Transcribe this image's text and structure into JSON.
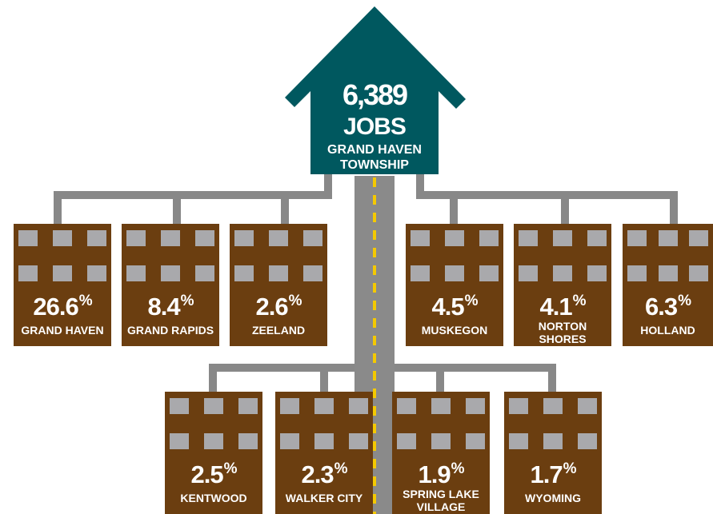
{
  "house": {
    "jobs_count": "6,389",
    "jobs_label": "JOBS",
    "place_line1": "GRAND HAVEN",
    "place_line2": "TOWNSHIP"
  },
  "colors": {
    "house": "#00585f",
    "building": "#6b3e10",
    "window": "#a9a9ac",
    "connector": "#888888",
    "road": "#8a8a8a",
    "road_line": "#f4c900"
  },
  "destinations": [
    {
      "value": "26.6",
      "unit": "%",
      "label": [
        "GRAND HAVEN"
      ]
    },
    {
      "value": "8.4",
      "unit": "%",
      "label": [
        "GRAND RAPIDS"
      ]
    },
    {
      "value": "2.6",
      "unit": "%",
      "label": [
        "ZEELAND"
      ]
    },
    {
      "value": "4.5",
      "unit": "%",
      "label": [
        "MUSKEGON"
      ]
    },
    {
      "value": "4.1",
      "unit": "%",
      "label": [
        "NORTON",
        "SHORES"
      ]
    },
    {
      "value": "6.3",
      "unit": "%",
      "label": [
        "HOLLAND"
      ]
    },
    {
      "value": "2.5",
      "unit": "%",
      "label": [
        "KENTWOOD"
      ]
    },
    {
      "value": "2.3",
      "unit": "%",
      "label": [
        "WALKER CITY"
      ]
    },
    {
      "value": "1.9",
      "unit": "%",
      "label": [
        "SPRING LAKE",
        "VILLAGE"
      ]
    },
    {
      "value": "1.7",
      "unit": "%",
      "label": [
        "WYOMING"
      ]
    }
  ]
}
